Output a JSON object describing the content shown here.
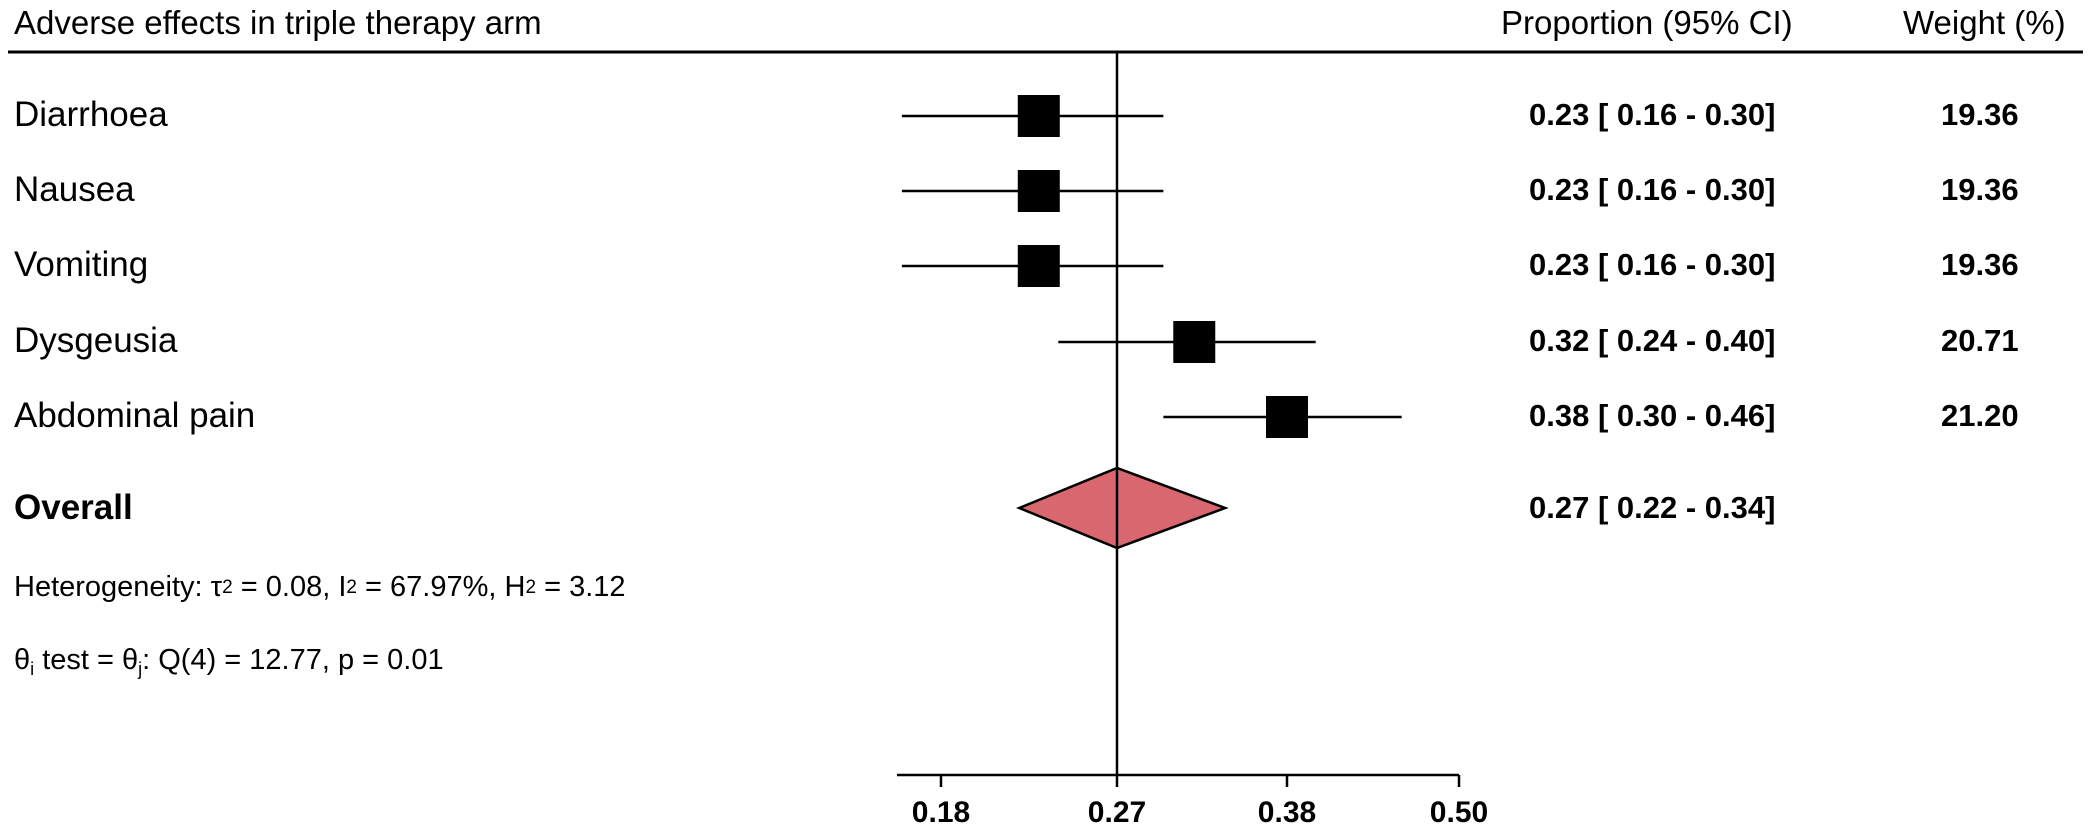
{
  "header": {
    "title": "Adverse effects in triple therapy arm",
    "col_ci": "Proportion (95% CI)",
    "col_weight": "Weight (%)"
  },
  "chart_data": {
    "type": "forest",
    "reference_line": 0.27,
    "xticks": [
      "0.18",
      "0.27",
      "0.38",
      "0.50"
    ],
    "xtick_values": [
      0.18,
      0.27,
      0.38,
      0.5
    ],
    "rows": [
      {
        "label": "Diarrhoea",
        "est": 0.23,
        "lo": 0.16,
        "hi": 0.3,
        "ci_text": "0.23 [  0.16 -  0.30]",
        "weight": "19.36"
      },
      {
        "label": "Nausea",
        "est": 0.23,
        "lo": 0.16,
        "hi": 0.3,
        "ci_text": "0.23 [  0.16 -  0.30]",
        "weight": "19.36"
      },
      {
        "label": "Vomiting",
        "est": 0.23,
        "lo": 0.16,
        "hi": 0.3,
        "ci_text": "0.23 [  0.16 -  0.30]",
        "weight": "19.36"
      },
      {
        "label": "Dysgeusia",
        "est": 0.32,
        "lo": 0.24,
        "hi": 0.4,
        "ci_text": "0.32 [  0.24 -  0.40]",
        "weight": "20.71"
      },
      {
        "label": "Abdominal pain",
        "est": 0.38,
        "lo": 0.3,
        "hi": 0.46,
        "ci_text": "0.38 [  0.30 -  0.46]",
        "weight": "21.20"
      }
    ],
    "overall": {
      "label": "Overall",
      "est": 0.27,
      "lo": 0.22,
      "hi": 0.34,
      "ci_text": "0.27 [  0.22 -  0.34]"
    },
    "colors": {
      "diamond_fill": "#d9676f",
      "marker": "#000000"
    }
  },
  "stats": {
    "heterogeneity_prefix": "Heterogeneity: τ",
    "tau_sup": "2",
    "tau_val": " = 0.08, I",
    "i_sup": "2",
    "i_val": " = 67.97%, H",
    "h_sup": "2",
    "h_val": " = 3.12",
    "theta_a": "θ",
    "sub_i": "i",
    "theta_b": " test = θ",
    "sub_j": "j",
    "theta_c": ": Q(4) = 12.77, p = 0.01"
  }
}
